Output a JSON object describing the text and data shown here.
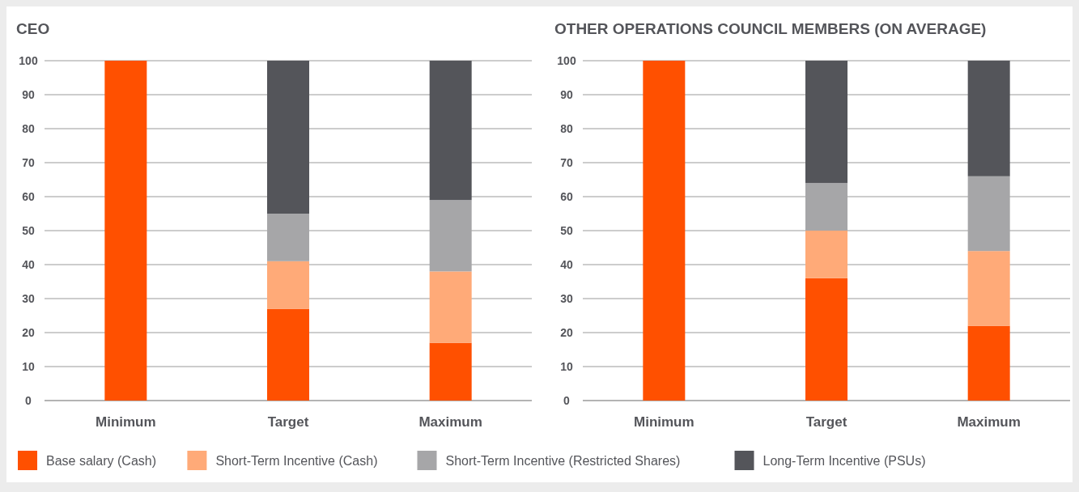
{
  "chart_data": [
    {
      "type": "bar",
      "title": "CEO",
      "categories": [
        "Minimum",
        "Target",
        "Maximum"
      ],
      "stacked": true,
      "ylim": [
        0,
        100
      ],
      "yticks": [
        0,
        10,
        20,
        30,
        40,
        50,
        60,
        70,
        80,
        90,
        100
      ],
      "grid": "y",
      "legend": "bottom",
      "series": [
        {
          "name": "Base salary (Cash)",
          "color": "#ff5000",
          "values": [
            100,
            27,
            17
          ]
        },
        {
          "name": "Short-Term Incentive (Cash)",
          "color": "#ffaa78",
          "values": [
            0,
            14,
            21
          ]
        },
        {
          "name": "Short-Term Incentive (Restricted Shares)",
          "color": "#a6a6a8",
          "values": [
            0,
            14,
            21
          ]
        },
        {
          "name": "Long-Term Incentive (PSUs)",
          "color": "#54555a",
          "values": [
            0,
            45,
            41
          ]
        }
      ]
    },
    {
      "type": "bar",
      "title": "OTHER OPERATIONS COUNCIL MEMBERS (ON AVERAGE)",
      "categories": [
        "Minimum",
        "Target",
        "Maximum"
      ],
      "stacked": true,
      "ylim": [
        0,
        100
      ],
      "yticks": [
        0,
        10,
        20,
        30,
        40,
        50,
        60,
        70,
        80,
        90,
        100
      ],
      "grid": "y",
      "series": [
        {
          "color": "#ff5000",
          "values": [
            100,
            36,
            22
          ]
        },
        {
          "color": "#ffaa78",
          "values": [
            0,
            14,
            22
          ]
        },
        {
          "color": "#a6a6a8",
          "values": [
            0,
            14,
            22
          ]
        },
        {
          "color": "#54555a",
          "values": [
            0,
            36,
            34
          ]
        }
      ]
    }
  ]
}
